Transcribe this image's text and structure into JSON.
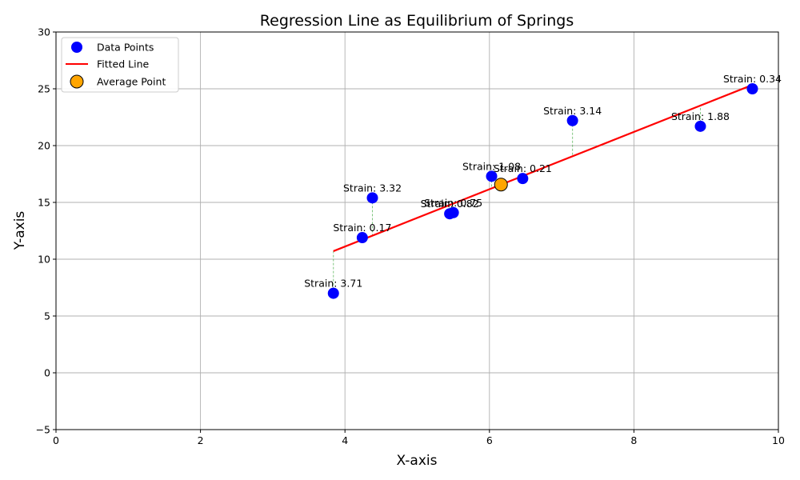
{
  "chart_data": {
    "type": "scatter",
    "title": "Regression Line as Equilibrium of Springs",
    "xlabel": "X-axis",
    "ylabel": "Y-axis",
    "xlim": [
      0,
      10
    ],
    "ylim": [
      -5,
      30
    ],
    "xticks": [
      0,
      2,
      4,
      6,
      8,
      10
    ],
    "yticks": [
      -5,
      0,
      5,
      10,
      15,
      20,
      25,
      30
    ],
    "grid": true,
    "legend_position": "upper-left",
    "series": [
      {
        "name": "Data Points",
        "kind": "scatter",
        "color": "#0000ff",
        "points": [
          {
            "x": 3.84,
            "y": 7.0,
            "label": "Strain: 3.71"
          },
          {
            "x": 4.24,
            "y": 11.9,
            "label": "Strain: 0.17"
          },
          {
            "x": 4.38,
            "y": 15.4,
            "label": "Strain: 3.32"
          },
          {
            "x": 5.45,
            "y": 14.0,
            "label": "Strain: 0.82"
          },
          {
            "x": 5.5,
            "y": 14.1,
            "label": "Strain: 0.75"
          },
          {
            "x": 6.03,
            "y": 17.3,
            "label": "Strain: 1.08"
          },
          {
            "x": 6.46,
            "y": 17.1,
            "label": "Strain: 0.21"
          },
          {
            "x": 7.15,
            "y": 22.2,
            "label": "Strain: 3.14"
          },
          {
            "x": 8.92,
            "y": 21.7,
            "label": "Strain: 1.88"
          },
          {
            "x": 9.64,
            "y": 25.0,
            "label": "Strain: 0.34"
          }
        ]
      },
      {
        "name": "Fitted Line",
        "kind": "line",
        "color": "#ff0000",
        "points": [
          {
            "x": 3.84,
            "y": 10.71
          },
          {
            "x": 9.64,
            "y": 25.34
          }
        ]
      },
      {
        "name": "Average Point",
        "kind": "scatter",
        "color": "#ffa500",
        "points": [
          {
            "x": 6.16,
            "y": 16.57
          }
        ]
      }
    ],
    "springs_color": "#2ca02c"
  }
}
